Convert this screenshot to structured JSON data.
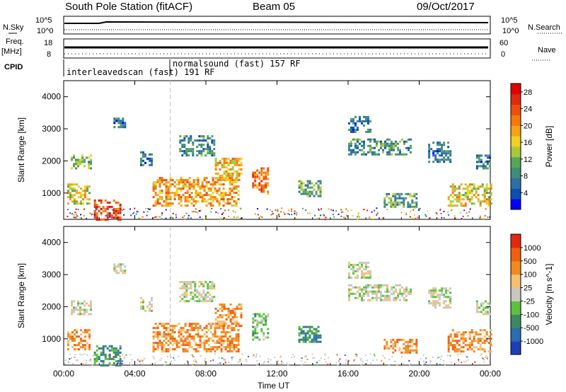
{
  "header": {
    "station": "South Pole Station (fitACF)",
    "beam": "Beam 05",
    "date": "09/Oct/2017"
  },
  "top_panels": {
    "nsky_label": "N.Sky",
    "nsky_ticks": [
      "10^5",
      "10^0"
    ],
    "nsearch_label": "N.Search",
    "nsearch_ticks": [
      "10^5",
      "10^0"
    ],
    "freq_label_line1": "Freq.",
    "freq_label_line2": "[MHz]",
    "freq_ticks": [
      "18",
      "8"
    ],
    "nave_label": "Nave",
    "nave_ticks": [
      "60",
      "0"
    ],
    "cpid_label": "CPID",
    "cpid_modes": [
      {
        "name": "interleavedscan (fast) 191 RF",
        "start_h": 0
      },
      {
        "name": "normalsound (fast) 157 RF",
        "start_h": 6
      }
    ]
  },
  "chart_data": [
    {
      "type": "heatmap",
      "name": "Power",
      "xlabel": "Time UT",
      "ylabel": "Slant Range [km]",
      "xlim_hours": [
        0,
        24
      ],
      "ylim_km": [
        180,
        4500
      ],
      "x_ticks": [
        "00:00",
        "04:00",
        "08:00",
        "12:00",
        "16:00",
        "20:00",
        "00:00"
      ],
      "y_ticks": [
        1000,
        2000,
        3000,
        4000
      ],
      "colorbar": {
        "label": "Power [dB]",
        "ticks": [
          "4",
          "8",
          "12",
          "16",
          "20",
          "24",
          "28"
        ],
        "range": [
          0,
          30
        ],
        "colors": [
          "#0000ff",
          "#0b4fb0",
          "#2d6fa8",
          "#3f8c78",
          "#55a657",
          "#a8c83c",
          "#f0d020",
          "#f7a21a",
          "#f27a0f",
          "#ea5010",
          "#e02a10",
          "#e00000"
        ]
      },
      "regions": [
        {
          "h": [
            0.4,
            1.5
          ],
          "km": [
            1800,
            2200
          ],
          "v": 12
        },
        {
          "h": [
            0.2,
            1.4
          ],
          "km": [
            700,
            1300
          ],
          "v": 16
        },
        {
          "h": [
            1.7,
            3.2
          ],
          "km": [
            200,
            800
          ],
          "v": 26
        },
        {
          "h": [
            2.8,
            3.5
          ],
          "km": [
            3050,
            3350
          ],
          "v": 6
        },
        {
          "h": [
            4.3,
            4.9
          ],
          "km": [
            1900,
            2300
          ],
          "v": 5
        },
        {
          "h": [
            5.0,
            9.8
          ],
          "km": [
            600,
            1500
          ],
          "v": 20
        },
        {
          "h": [
            8.5,
            10.0
          ],
          "km": [
            1400,
            2100
          ],
          "v": 18
        },
        {
          "h": [
            6.5,
            8.5
          ],
          "km": [
            2200,
            2800
          ],
          "v": 8
        },
        {
          "h": [
            10.6,
            11.5
          ],
          "km": [
            1000,
            1800
          ],
          "v": 22
        },
        {
          "h": [
            13.2,
            14.4
          ],
          "km": [
            900,
            1400
          ],
          "v": 10
        },
        {
          "h": [
            16.0,
            19.5
          ],
          "km": [
            2200,
            2700
          ],
          "v": 8
        },
        {
          "h": [
            16.0,
            17.2
          ],
          "km": [
            2900,
            3400
          ],
          "v": 6
        },
        {
          "h": [
            20.5,
            21.8
          ],
          "km": [
            2000,
            2600
          ],
          "v": 6
        },
        {
          "h": [
            18.0,
            19.8
          ],
          "km": [
            600,
            1000
          ],
          "v": 10
        },
        {
          "h": [
            21.6,
            24.0
          ],
          "km": [
            600,
            1300
          ],
          "v": 16
        },
        {
          "h": [
            23.2,
            24.0
          ],
          "km": [
            1800,
            2200
          ],
          "v": 6
        }
      ]
    },
    {
      "type": "heatmap",
      "name": "Velocity",
      "xlabel": "Time UT",
      "ylabel": "Slant Range [km]",
      "xlim_hours": [
        0,
        24
      ],
      "ylim_km": [
        180,
        4500
      ],
      "x_ticks": [
        "00:00",
        "04:00",
        "08:00",
        "12:00",
        "16:00",
        "20:00",
        "00:00"
      ],
      "y_ticks": [
        1000,
        2000,
        3000,
        4000
      ],
      "colorbar": {
        "label": "Velocity [m s^-1]",
        "ticks": [
          "1000",
          "500",
          "100",
          "25",
          "-25",
          "-100",
          "-500",
          "-1000"
        ],
        "colors": [
          "#1c3fb8",
          "#2a6db0",
          "#3b8a63",
          "#5cc23c",
          "#c8c8c0",
          "#f5c070",
          "#f08a20",
          "#ee6010",
          "#e02a10"
        ]
      },
      "regions": [
        {
          "h": [
            0.4,
            1.5
          ],
          "km": [
            1800,
            2200
          ],
          "v": 4
        },
        {
          "h": [
            0.2,
            1.4
          ],
          "km": [
            700,
            1300
          ],
          "v": 6
        },
        {
          "h": [
            1.7,
            3.2
          ],
          "km": [
            200,
            800
          ],
          "v": 2
        },
        {
          "h": [
            2.8,
            3.5
          ],
          "km": [
            3050,
            3350
          ],
          "v": 4
        },
        {
          "h": [
            4.3,
            4.9
          ],
          "km": [
            1900,
            2300
          ],
          "v": 4
        },
        {
          "h": [
            5.0,
            9.8
          ],
          "km": [
            600,
            1500
          ],
          "v": 6
        },
        {
          "h": [
            8.5,
            10.0
          ],
          "km": [
            1400,
            2100
          ],
          "v": 6
        },
        {
          "h": [
            6.5,
            8.5
          ],
          "km": [
            2200,
            2800
          ],
          "v": 4
        },
        {
          "h": [
            10.6,
            11.5
          ],
          "km": [
            1000,
            1800
          ],
          "v": 3
        },
        {
          "h": [
            13.2,
            14.4
          ],
          "km": [
            900,
            1400
          ],
          "v": 2
        },
        {
          "h": [
            16.0,
            19.5
          ],
          "km": [
            2200,
            2700
          ],
          "v": 4
        },
        {
          "h": [
            16.0,
            17.2
          ],
          "km": [
            2900,
            3400
          ],
          "v": 4
        },
        {
          "h": [
            20.5,
            21.8
          ],
          "km": [
            2000,
            2600
          ],
          "v": 4
        },
        {
          "h": [
            18.0,
            19.8
          ],
          "km": [
            600,
            1000
          ],
          "v": 6
        },
        {
          "h": [
            21.6,
            24.0
          ],
          "km": [
            600,
            1300
          ],
          "v": 6
        },
        {
          "h": [
            23.2,
            24.0
          ],
          "km": [
            1800,
            2200
          ],
          "v": 4
        }
      ]
    }
  ]
}
